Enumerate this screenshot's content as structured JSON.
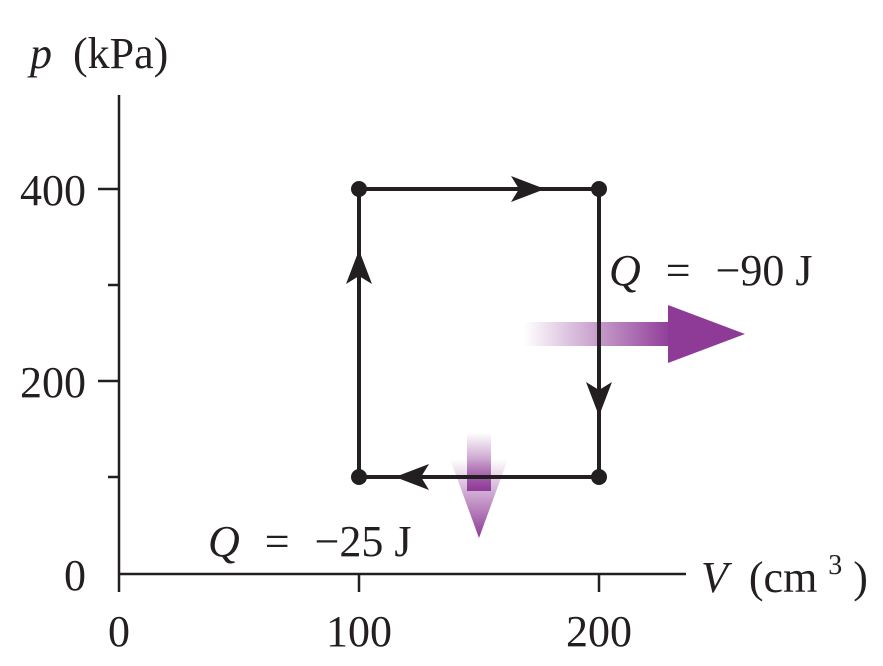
{
  "axes": {
    "y_label_var": "p",
    "y_label_unit": "(kPa)",
    "x_label_var": "V",
    "x_label_unit_open": "(cm",
    "x_label_unit_sup": "3",
    "x_label_unit_close": ")",
    "x_ticks": [
      "0",
      "100",
      "200"
    ],
    "y_ticks": [
      "0",
      "200",
      "400"
    ]
  },
  "cycle": {
    "points": [
      {
        "V": 100,
        "p": 100
      },
      {
        "V": 100,
        "p": 400
      },
      {
        "V": 200,
        "p": 400
      },
      {
        "V": 200,
        "p": 100
      }
    ],
    "direction": "clockwise"
  },
  "heat_flows": [
    {
      "symbol": "Q",
      "equals": "=",
      "value": "−90 J",
      "process": "isochoric cooling at 200 cm3",
      "arrow_direction": "right"
    },
    {
      "symbol": "Q",
      "equals": "=",
      "value": "−25 J",
      "process": "isobaric compression at 100 kPa",
      "arrow_direction": "down"
    }
  ],
  "colors": {
    "line": "#231f20",
    "heat_arrow": "#8e3a97",
    "heat_arrow_fade": "#ffffff"
  }
}
